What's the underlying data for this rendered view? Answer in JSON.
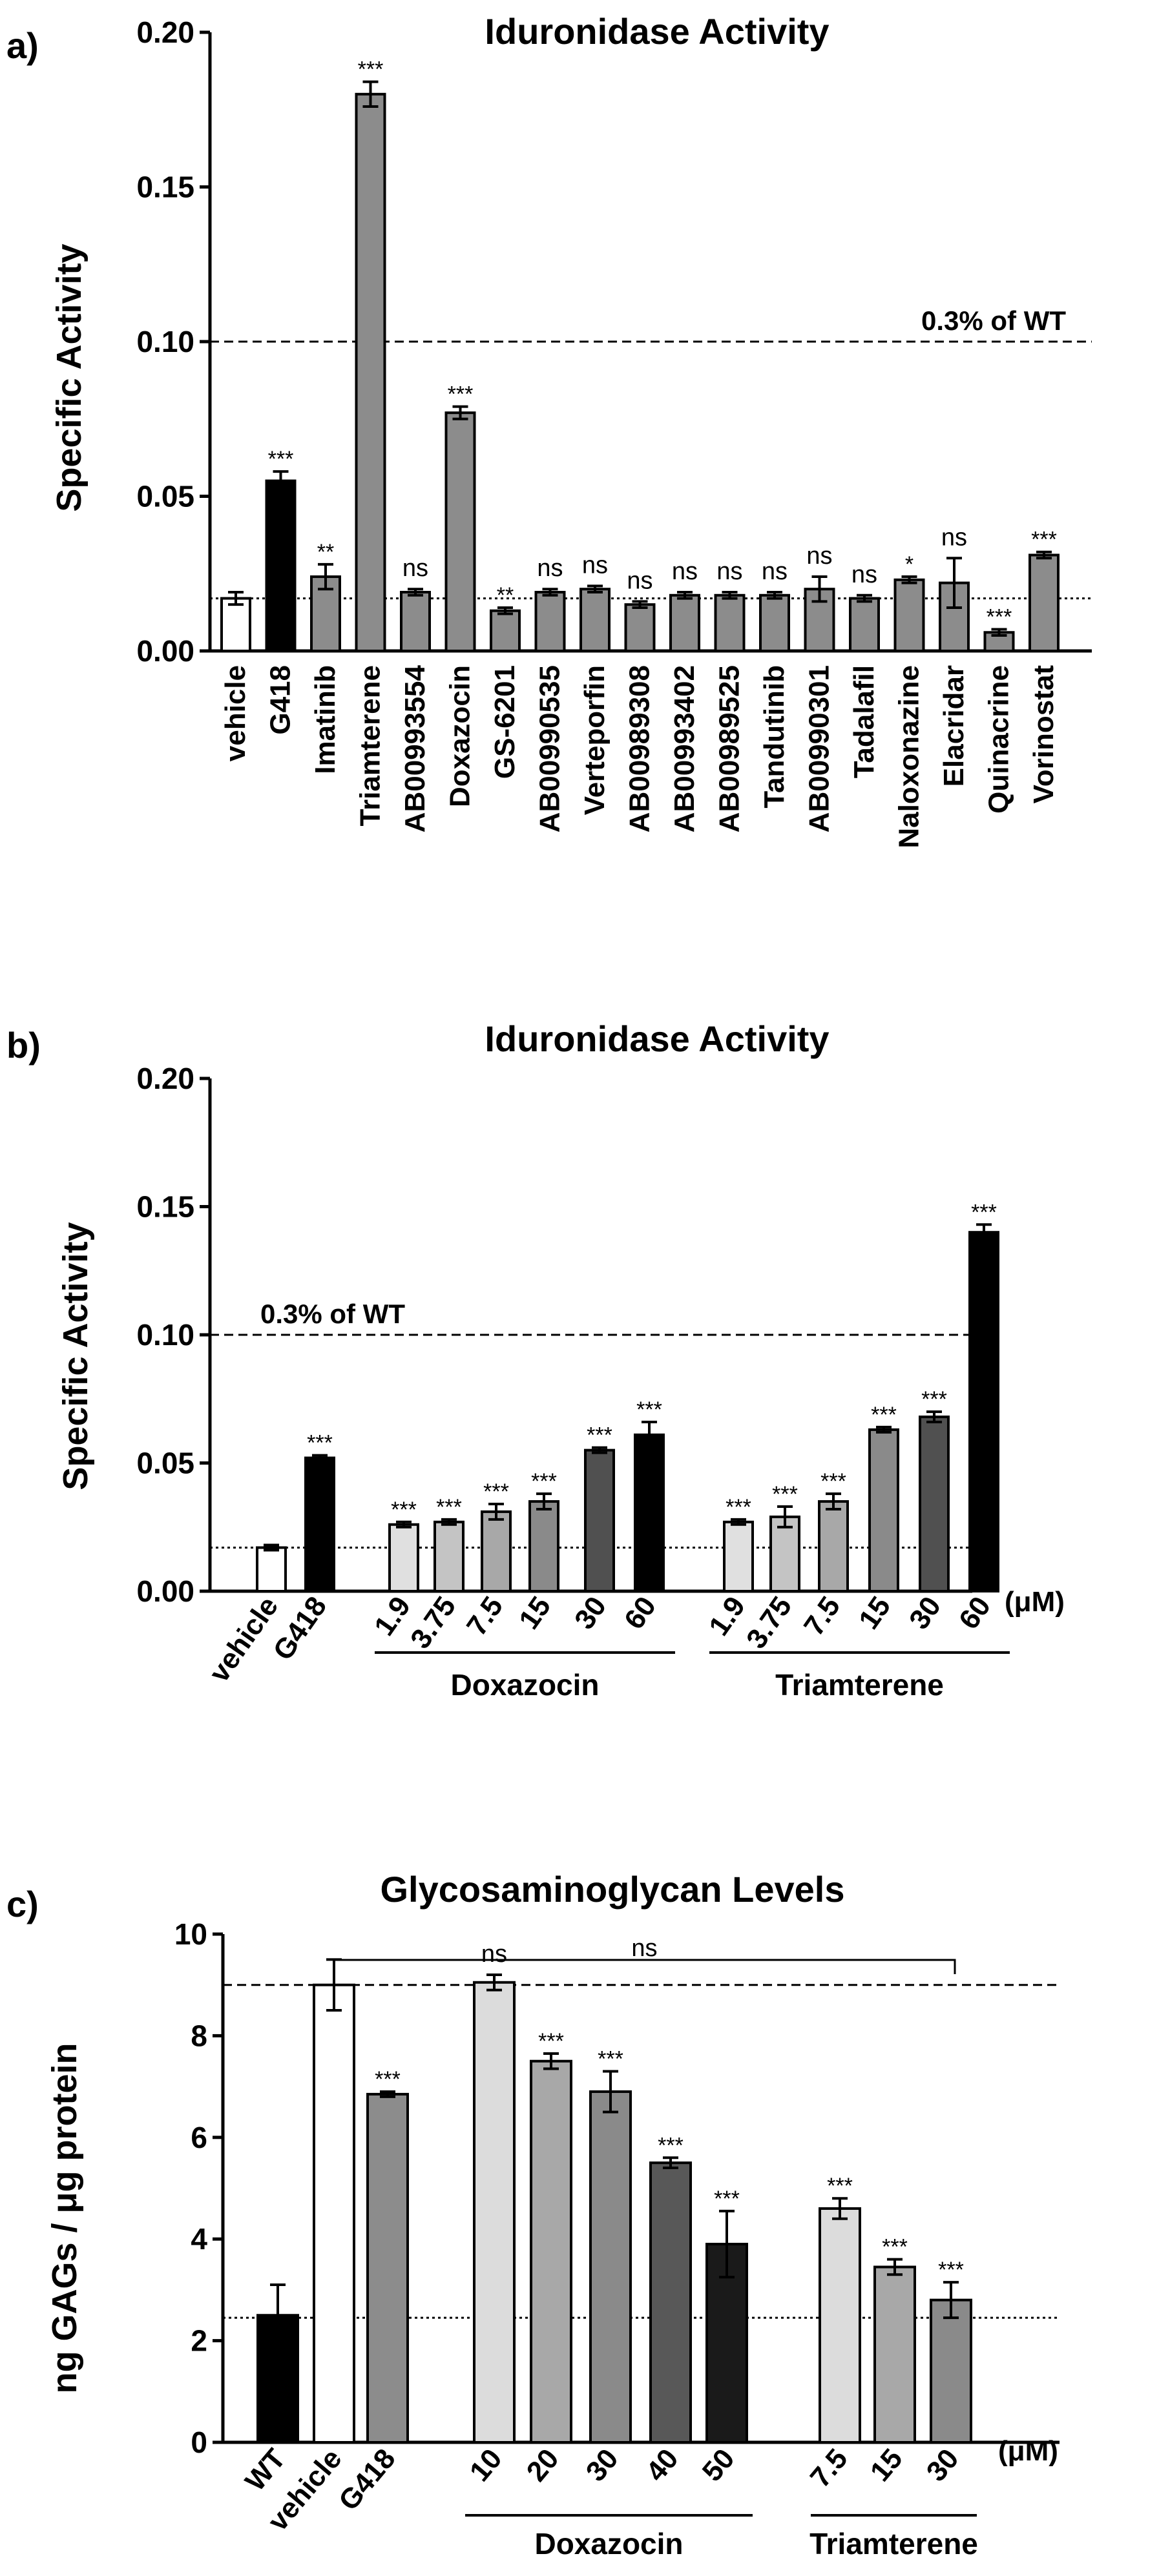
{
  "chart_data": [
    {
      "panel": "a)",
      "type": "bar",
      "title": "Iduronidase Activity",
      "ylabel": "Specific Activity",
      "xlabel": "",
      "ylim": [
        0,
        0.2
      ],
      "yticks": [
        "0.00",
        "0.05",
        "0.10",
        "0.15",
        "0.20"
      ],
      "yticks_values": [
        0,
        0.05,
        0.1,
        0.15,
        0.2
      ],
      "categories": [
        "vehicle",
        "G418",
        "Imatinib",
        "Triamterene",
        "AB00993554",
        "Doxazocin",
        "GS-6201",
        "AB00990535",
        "Verteporfin",
        "AB00989308",
        "AB00993402",
        "AB00989525",
        "Tandutinib",
        "AB00990301",
        "Tadalafil",
        "Naloxonazine",
        "Elacridar",
        "Quinacrine",
        "Vorinostat"
      ],
      "values": [
        0.017,
        0.055,
        0.024,
        0.18,
        0.019,
        0.077,
        0.013,
        0.019,
        0.02,
        0.015,
        0.018,
        0.018,
        0.018,
        0.02,
        0.017,
        0.023,
        0.022,
        0.006,
        0.031
      ],
      "errors": [
        0.002,
        0.003,
        0.004,
        0.004,
        0.001,
        0.002,
        0.001,
        0.001,
        0.001,
        0.001,
        0.001,
        0.001,
        0.001,
        0.004,
        0.001,
        0.001,
        0.008,
        0.001,
        0.001
      ],
      "significance": [
        "",
        "***",
        "**",
        "***",
        "ns",
        "***",
        "**",
        "ns",
        "ns",
        "ns",
        "ns",
        "ns",
        "ns",
        "ns",
        "ns",
        "*",
        "ns",
        "***",
        "***"
      ],
      "fills": [
        "#ffffff",
        "#000000",
        "#8c8c8c",
        "#8c8c8c",
        "#8c8c8c",
        "#8c8c8c",
        "#8c8c8c",
        "#8c8c8c",
        "#8c8c8c",
        "#8c8c8c",
        "#8c8c8c",
        "#8c8c8c",
        "#8c8c8c",
        "#8c8c8c",
        "#8c8c8c",
        "#8c8c8c",
        "#8c8c8c",
        "#8c8c8c",
        "#8c8c8c"
      ],
      "reference_lines": [
        {
          "value": 0.1,
          "style": "dashed",
          "label": "0.3% of WT"
        },
        {
          "value": 0.017,
          "style": "dotted",
          "label": ""
        }
      ]
    },
    {
      "panel": "b)",
      "type": "bar",
      "title": "Iduronidase Activity",
      "ylabel": "Specific Activity",
      "xlabel": "",
      "ylim": [
        0,
        0.2
      ],
      "yticks": [
        "0.00",
        "0.05",
        "0.10",
        "0.15",
        "0.20"
      ],
      "yticks_values": [
        0,
        0.05,
        0.1,
        0.15,
        0.2
      ],
      "categories": [
        "vehicle",
        "G418",
        "1.9",
        "3.75",
        "7.5",
        "15",
        "30",
        "60",
        "1.9",
        "3.75",
        "7.5",
        "15",
        "30",
        "60"
      ],
      "values": [
        0.017,
        0.052,
        0.026,
        0.027,
        0.031,
        0.035,
        0.055,
        0.061,
        0.027,
        0.029,
        0.035,
        0.063,
        0.068,
        0.14
      ],
      "errors": [
        0.001,
        0.001,
        0.001,
        0.001,
        0.003,
        0.003,
        0.001,
        0.005,
        0.001,
        0.004,
        0.003,
        0.001,
        0.002,
        0.003
      ],
      "significance": [
        "",
        "***",
        "***",
        "***",
        "***",
        "***",
        "***",
        "***",
        "***",
        "***",
        "***",
        "***",
        "***",
        "***"
      ],
      "fills": [
        "#ffffff",
        "#000000",
        "#e0e0e0",
        "#c4c4c4",
        "#a8a8a8",
        "#8a8a8a",
        "#505050",
        "#000000",
        "#e0e0e0",
        "#c4c4c4",
        "#a8a8a8",
        "#8a8a8a",
        "#505050",
        "#000000"
      ],
      "groups": [
        {
          "label": "Doxazocin",
          "start": 2,
          "end": 7
        },
        {
          "label": "Triamterene",
          "start": 8,
          "end": 13
        }
      ],
      "unit": "(μM)",
      "reference_lines": [
        {
          "value": 0.1,
          "style": "dashed",
          "label": "0.3% of WT"
        },
        {
          "value": 0.017,
          "style": "dotted",
          "label": ""
        }
      ]
    },
    {
      "panel": "c)",
      "type": "bar",
      "title": "Glycosaminoglycan Levels",
      "ylabel": "ng GAGs / μg protein",
      "xlabel": "",
      "ylim": [
        0,
        10
      ],
      "yticks": [
        "0",
        "2",
        "4",
        "6",
        "8",
        "10"
      ],
      "yticks_values": [
        0,
        2,
        4,
        6,
        8,
        10
      ],
      "categories": [
        "WT",
        "vehicle",
        "G418",
        "10",
        "20",
        "30",
        "40",
        "50",
        "7.5",
        "15",
        "30"
      ],
      "values": [
        2.5,
        9.0,
        6.85,
        9.05,
        7.5,
        6.9,
        5.5,
        3.9,
        4.6,
        3.45,
        2.8
      ],
      "errors": [
        0.6,
        0.5,
        0.05,
        0.15,
        0.15,
        0.4,
        0.1,
        0.65,
        0.2,
        0.15,
        0.35
      ],
      "significance": [
        "",
        "",
        "***",
        "ns",
        "***",
        "***",
        "***",
        "***",
        "***",
        "***",
        "***"
      ],
      "fills": [
        "#000000",
        "#ffffff",
        "#8c8c8c",
        "#dcdcdc",
        "#a8a8a8",
        "#8a8a8a",
        "#585858",
        "#1a1a1a",
        "#dcdcdc",
        "#a8a8a8",
        "#8a8a8a"
      ],
      "groups": [
        {
          "label": "Doxazocin",
          "start": 3,
          "end": 7
        },
        {
          "label": "Triamterene",
          "start": 8,
          "end": 10
        }
      ],
      "unit": "(μM)",
      "bracket": {
        "label": "ns",
        "start": 1,
        "end": 10
      },
      "reference_lines": [
        {
          "value": 9.0,
          "style": "dashed",
          "label": ""
        },
        {
          "value": 2.45,
          "style": "dotted",
          "label": ""
        }
      ]
    }
  ]
}
